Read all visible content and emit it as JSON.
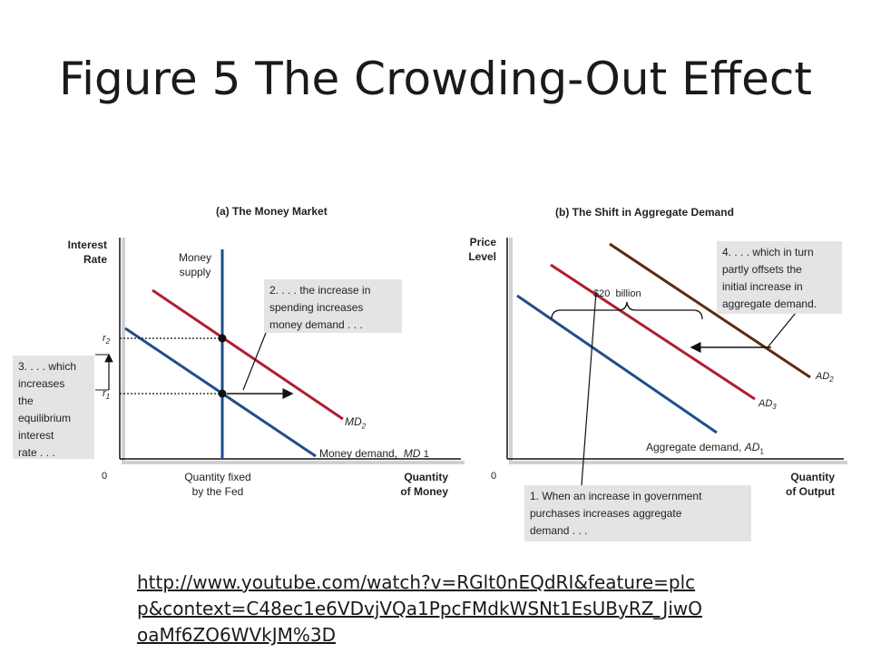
{
  "slide_title": "Figure 5 The Crowding-Out Effect",
  "panel_a": {
    "title": "(a) The Money Market",
    "y_axis_label": [
      "Interest",
      "Rate"
    ],
    "x_axis_label": [
      "Quantity",
      "of Money"
    ],
    "origin": "0",
    "money_supply_label": [
      "Money",
      "supply"
    ],
    "quantity_fixed_label": [
      "Quantity fixed",
      "by the Fed"
    ],
    "r2": "r",
    "r2_sub": "2",
    "r1": "r",
    "r1_sub": "1",
    "md2_label": "MD",
    "md2_sub": "2",
    "md1_text": "Money demand,",
    "md1_label": "MD",
    "md1_sub": "1",
    "callout_2": [
      "2. . . . the increase in",
      "spending increases",
      "money demand . . ."
    ],
    "callout_3": [
      "3. . . . which",
      "increases",
      "the",
      "equilibrium",
      "interest",
      "rate . . ."
    ]
  },
  "panel_b": {
    "title": "(b) The Shift in Aggregate Demand",
    "y_axis_label": [
      "Price",
      "Level"
    ],
    "x_axis_label": [
      "Quantity",
      "of Output"
    ],
    "origin": "0",
    "amount_label": "$20  billion",
    "ad1_text": "Aggregate demand,",
    "ad1_label": "AD",
    "ad1_sub": "1",
    "ad2_label": "AD",
    "ad2_sub": "2",
    "ad3_label": "AD",
    "ad3_sub": "3",
    "callout_1": [
      "1. When an increase in government",
      "purchases increases aggregate",
      "demand . . ."
    ],
    "callout_4": [
      "4. . . . which in turn",
      "partly offsets the",
      "initial increase in",
      "aggregate demand."
    ]
  },
  "link_lines": [
    "http://www.youtube.com/watch?v=RGlt0nEQdRI&feature=plc",
    "p&context=C48ec1e6VDvjVQa1PpcFMdkWSNt1EsUByRZ_JiwO",
    "oaMf6ZO6WVkJM%3D"
  ],
  "colors": {
    "blue": "#1f4e8c",
    "red": "#b01e2f",
    "brown": "#5c2a12",
    "callout_bg": "#e4e4e4"
  }
}
